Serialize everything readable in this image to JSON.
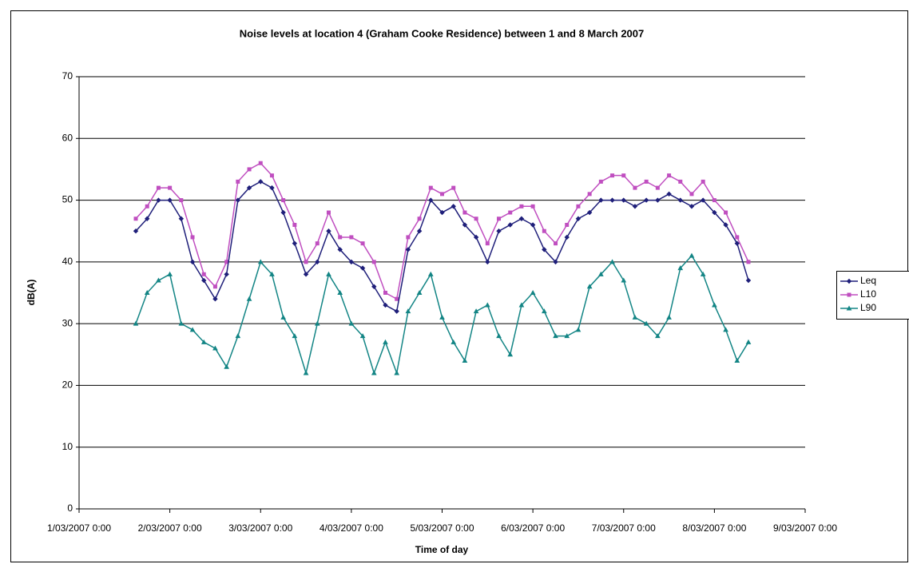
{
  "chart_data": {
    "type": "line",
    "title": "Noise levels at location 4 (Graham Cooke Residence) between 1 and 8 March 2007",
    "x_label": "Time of day",
    "y_label": "dB(A)",
    "x": [
      "1/03/2007 15:00",
      "1/03/2007 18:00",
      "1/03/2007 21:00",
      "2/03/2007 0:00",
      "2/03/2007 3:00",
      "2/03/2007 6:00",
      "2/03/2007 9:00",
      "2/03/2007 12:00",
      "2/03/2007 15:00",
      "2/03/2007 18:00",
      "2/03/2007 21:00",
      "3/03/2007 0:00",
      "3/03/2007 3:00",
      "3/03/2007 6:00",
      "3/03/2007 9:00",
      "3/03/2007 12:00",
      "3/03/2007 15:00",
      "3/03/2007 18:00",
      "3/03/2007 21:00",
      "4/03/2007 0:00",
      "4/03/2007 3:00",
      "4/03/2007 6:00",
      "4/03/2007 9:00",
      "4/03/2007 12:00",
      "4/03/2007 15:00",
      "4/03/2007 18:00",
      "4/03/2007 21:00",
      "5/03/2007 0:00",
      "5/03/2007 3:00",
      "5/03/2007 6:00",
      "5/03/2007 9:00",
      "5/03/2007 12:00",
      "5/03/2007 15:00",
      "5/03/2007 18:00",
      "5/03/2007 21:00",
      "6/03/2007 0:00",
      "6/03/2007 3:00",
      "6/03/2007 6:00",
      "6/03/2007 9:00",
      "6/03/2007 12:00",
      "6/03/2007 15:00",
      "6/03/2007 18:00",
      "6/03/2007 21:00",
      "7/03/2007 0:00",
      "7/03/2007 3:00",
      "7/03/2007 6:00",
      "7/03/2007 9:00",
      "7/03/2007 12:00",
      "7/03/2007 15:00",
      "7/03/2007 18:00",
      "7/03/2007 21:00",
      "8/03/2007 0:00",
      "8/03/2007 3:00",
      "8/03/2007 6:00",
      "8/03/2007 9:00"
    ],
    "series": [
      {
        "name": "Leq",
        "color": "#1f1f7a",
        "marker": "diamond",
        "values": [
          45,
          47,
          50,
          50,
          47,
          40,
          37,
          34,
          38,
          50,
          52,
          53,
          52,
          48,
          43,
          38,
          40,
          45,
          42,
          40,
          39,
          36,
          33,
          32,
          42,
          45,
          50,
          48,
          49,
          46,
          44,
          40,
          45,
          46,
          47,
          46,
          42,
          40,
          44,
          47,
          48,
          50,
          50,
          50,
          49,
          50,
          50,
          51,
          50,
          49,
          50,
          48,
          46,
          43,
          37
        ]
      },
      {
        "name": "L10",
        "color": "#c04fc0",
        "marker": "square",
        "values": [
          47,
          49,
          52,
          52,
          50,
          44,
          38,
          36,
          40,
          53,
          55,
          56,
          54,
          50,
          46,
          40,
          43,
          48,
          44,
          44,
          43,
          40,
          35,
          34,
          44,
          47,
          52,
          51,
          52,
          48,
          47,
          43,
          47,
          48,
          49,
          49,
          45,
          43,
          46,
          49,
          51,
          53,
          54,
          54,
          52,
          53,
          52,
          54,
          53,
          51,
          53,
          50,
          48,
          44,
          40
        ]
      },
      {
        "name": "L90",
        "color": "#138585",
        "marker": "triangle",
        "values": [
          30,
          35,
          37,
          38,
          30,
          29,
          27,
          26,
          23,
          28,
          34,
          40,
          38,
          31,
          28,
          22,
          30,
          38,
          35,
          30,
          28,
          22,
          27,
          22,
          32,
          35,
          38,
          31,
          27,
          24,
          32,
          33,
          28,
          25,
          33,
          35,
          32,
          28,
          28,
          29,
          36,
          38,
          40,
          37,
          31,
          30,
          28,
          31,
          39,
          41,
          38,
          33,
          29,
          24,
          27
        ]
      }
    ],
    "xlim": [
      "1/03/2007 0:00",
      "9/03/2007 0:00"
    ],
    "xticks": [
      "1/03/2007 0:00",
      "2/03/2007 0:00",
      "3/03/2007 0:00",
      "4/03/2007 0:00",
      "5/03/2007 0:00",
      "6/03/2007 0:00",
      "7/03/2007 0:00",
      "8/03/2007 0:00",
      "9/03/2007 0:00"
    ],
    "ylim": [
      0,
      70
    ],
    "yticks": [
      0,
      10,
      20,
      30,
      40,
      50,
      60,
      70
    ],
    "grid": true,
    "legend": "right"
  }
}
